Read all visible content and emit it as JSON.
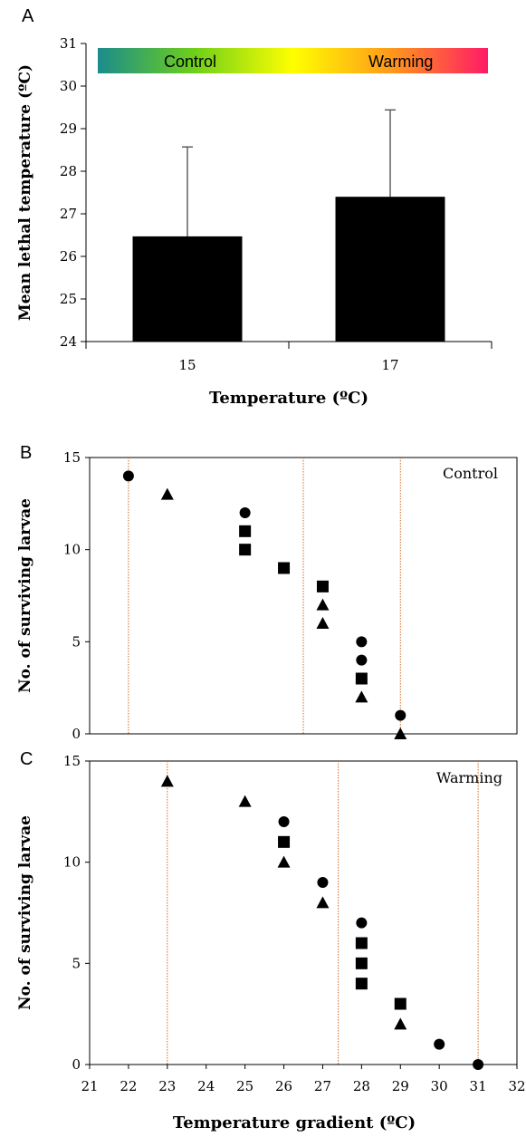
{
  "panel_labels": [
    "A",
    "B",
    "C"
  ],
  "colors": {
    "bar": "#000000",
    "error_bar": "#555555",
    "ref_line": "#d2691e",
    "gradient_stops": [
      "#1a8c8c",
      "#6fd01a",
      "#ffff00",
      "#ff9a1a",
      "#ff1a66"
    ]
  },
  "chart_data": [
    {
      "panel": "A",
      "type": "bar",
      "categories": [
        "15",
        "17"
      ],
      "values": [
        26.47,
        27.4
      ],
      "errors": [
        2.1,
        2.04
      ],
      "xlabel": "Temperature (ºC)",
      "ylabel": "Mean lethal temperature (ºC)",
      "ylim": [
        24,
        31
      ],
      "yticks": [
        24,
        25,
        26,
        27,
        28,
        29,
        30,
        31
      ],
      "gradient_legend": {
        "left_label": "Control",
        "right_label": "Warming"
      },
      "grid": false
    },
    {
      "panel": "B",
      "type": "scatter",
      "annotation": "Control",
      "ylabel": "No. of surviving larvae",
      "xlim": [
        21,
        32
      ],
      "ylim": [
        0,
        15
      ],
      "yticks": [
        0,
        5,
        10,
        15
      ],
      "reference_lines_x": [
        22,
        26.5,
        29
      ],
      "series": [
        {
          "marker": "circle",
          "points": [
            [
              22,
              14
            ],
            [
              25,
              12
            ],
            [
              28,
              5
            ],
            [
              28,
              4
            ],
            [
              29,
              1
            ]
          ]
        },
        {
          "marker": "square",
          "points": [
            [
              25,
              11
            ],
            [
              25,
              10
            ],
            [
              26,
              9
            ],
            [
              27,
              8
            ],
            [
              28,
              3
            ]
          ]
        },
        {
          "marker": "triangle",
          "points": [
            [
              23,
              13
            ],
            [
              27,
              7
            ],
            [
              27,
              6
            ],
            [
              28,
              2
            ],
            [
              29,
              0
            ]
          ]
        }
      ],
      "grid": false
    },
    {
      "panel": "C",
      "type": "scatter",
      "annotation": "Warming",
      "xlabel": "Temperature gradient (ºC)",
      "ylabel": "No. of surviving larvae",
      "xlim": [
        21,
        32
      ],
      "ylim": [
        0,
        15
      ],
      "xticks": [
        21,
        22,
        23,
        24,
        25,
        26,
        27,
        28,
        29,
        30,
        31,
        32
      ],
      "yticks": [
        0,
        5,
        10,
        15
      ],
      "reference_lines_x": [
        23,
        27.4,
        31
      ],
      "series": [
        {
          "marker": "circle",
          "points": [
            [
              26,
              12
            ],
            [
              27,
              9
            ],
            [
              28,
              7
            ],
            [
              30,
              1
            ],
            [
              31,
              0
            ]
          ]
        },
        {
          "marker": "square",
          "points": [
            [
              26,
              11
            ],
            [
              28,
              6
            ],
            [
              28,
              5
            ],
            [
              28,
              4
            ],
            [
              29,
              3
            ]
          ]
        },
        {
          "marker": "triangle",
          "points": [
            [
              23,
              14
            ],
            [
              25,
              13
            ],
            [
              26,
              10
            ],
            [
              27,
              8
            ],
            [
              29,
              2
            ]
          ]
        }
      ],
      "grid": false
    }
  ]
}
